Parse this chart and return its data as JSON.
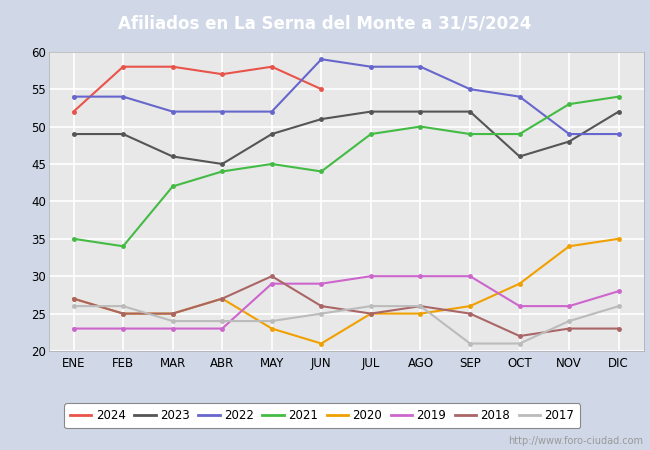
{
  "title": "Afiliados en La Serna del Monte a 31/5/2024",
  "months": [
    "ENE",
    "FEB",
    "MAR",
    "ABR",
    "MAY",
    "JUN",
    "JUL",
    "AGO",
    "SEP",
    "OCT",
    "NOV",
    "DIC"
  ],
  "ylim": [
    20,
    60
  ],
  "yticks": [
    20,
    25,
    30,
    35,
    40,
    45,
    50,
    55,
    60
  ],
  "series": {
    "2024": {
      "color": "#e8534a",
      "data": [
        52,
        58,
        58,
        57,
        58,
        55,
        null,
        null,
        null,
        null,
        null,
        null
      ]
    },
    "2023": {
      "color": "#555555",
      "data": [
        49,
        49,
        46,
        45,
        49,
        51,
        52,
        52,
        52,
        46,
        48,
        52
      ]
    },
    "2022": {
      "color": "#6666cc",
      "data": [
        54,
        54,
        52,
        52,
        52,
        59,
        58,
        58,
        55,
        54,
        49,
        49
      ]
    },
    "2021": {
      "color": "#44bb44",
      "data": [
        35,
        34,
        42,
        44,
        45,
        44,
        49,
        50,
        49,
        49,
        53,
        54
      ]
    },
    "2020": {
      "color": "#f0a000",
      "data": [
        27,
        25,
        25,
        27,
        23,
        21,
        25,
        25,
        26,
        29,
        34,
        35
      ]
    },
    "2019": {
      "color": "#cc66cc",
      "data": [
        23,
        23,
        23,
        23,
        29,
        29,
        30,
        30,
        30,
        26,
        26,
        28
      ]
    },
    "2018": {
      "color": "#aa6666",
      "data": [
        27,
        25,
        25,
        27,
        30,
        26,
        25,
        26,
        25,
        22,
        23,
        23
      ]
    },
    "2017": {
      "color": "#bbbbbb",
      "data": [
        26,
        26,
        24,
        24,
        24,
        25,
        26,
        26,
        21,
        21,
        24,
        26
      ]
    }
  },
  "legend_order": [
    "2024",
    "2023",
    "2022",
    "2021",
    "2020",
    "2019",
    "2018",
    "2017"
  ],
  "fig_bg": "#d0d8e8",
  "plot_bg": "#e8e8e8",
  "header_bg": "#4472c4",
  "grid_color": "#ffffff",
  "watermark": "http://www.foro-ciudad.com"
}
